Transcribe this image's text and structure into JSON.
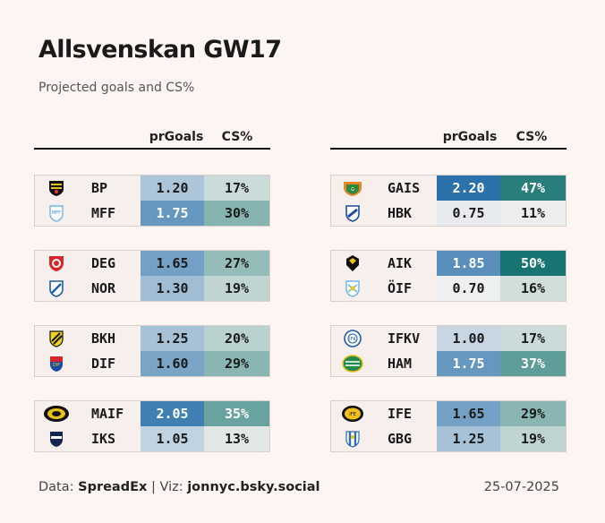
{
  "header": {
    "title": "Allsvenskan GW17",
    "subtitle": "Projected goals and CS%"
  },
  "columns": {
    "goals": "prGoals",
    "cs": "CS%"
  },
  "footer": {
    "data_prefix": "Data: ",
    "data_source": "SpreadEx",
    "separator": " | Viz: ",
    "viz_credit": "jonnyc.bsky.social",
    "date": "25-07-2025"
  },
  "chart_data": {
    "type": "table",
    "title": "Allsvenskan GW17",
    "subtitle": "Projected goals and CS%",
    "columns": [
      "prGoals",
      "CS%"
    ],
    "matches": [
      {
        "teams": [
          {
            "team": "BP",
            "goals": "1.20",
            "cs": "17%",
            "goals_value": 1.2,
            "cs_value": 17,
            "crest": "bp-crest-icon"
          },
          {
            "team": "MFF",
            "goals": "1.75",
            "cs": "30%",
            "goals_value": 1.75,
            "cs_value": 30,
            "crest": "mff-crest-icon"
          }
        ]
      },
      {
        "teams": [
          {
            "team": "DEG",
            "goals": "1.65",
            "cs": "27%",
            "goals_value": 1.65,
            "cs_value": 27,
            "crest": "deg-crest-icon"
          },
          {
            "team": "NOR",
            "goals": "1.30",
            "cs": "19%",
            "goals_value": 1.3,
            "cs_value": 19,
            "crest": "nor-crest-icon"
          }
        ]
      },
      {
        "teams": [
          {
            "team": "BKH",
            "goals": "1.25",
            "cs": "20%",
            "goals_value": 1.25,
            "cs_value": 20,
            "crest": "bkh-crest-icon"
          },
          {
            "team": "DIF",
            "goals": "1.60",
            "cs": "29%",
            "goals_value": 1.6,
            "cs_value": 29,
            "crest": "dif-crest-icon"
          }
        ]
      },
      {
        "teams": [
          {
            "team": "MAIF",
            "goals": "2.05",
            "cs": "35%",
            "goals_value": 2.05,
            "cs_value": 35,
            "crest": "maif-crest-icon"
          },
          {
            "team": "IKS",
            "goals": "1.05",
            "cs": "13%",
            "goals_value": 1.05,
            "cs_value": 13,
            "crest": "iks-crest-icon"
          }
        ]
      },
      {
        "teams": [
          {
            "team": "GAIS",
            "goals": "2.20",
            "cs": "47%",
            "goals_value": 2.2,
            "cs_value": 47,
            "crest": "gais-crest-icon"
          },
          {
            "team": "HBK",
            "goals": "0.75",
            "cs": "11%",
            "goals_value": 0.75,
            "cs_value": 11,
            "crest": "hbk-crest-icon"
          }
        ]
      },
      {
        "teams": [
          {
            "team": "AIK",
            "goals": "1.85",
            "cs": "50%",
            "goals_value": 1.85,
            "cs_value": 50,
            "crest": "aik-crest-icon"
          },
          {
            "team": "ÖIF",
            "goals": "0.70",
            "cs": "16%",
            "goals_value": 0.7,
            "cs_value": 16,
            "crest": "oif-crest-icon"
          }
        ]
      },
      {
        "teams": [
          {
            "team": "IFKV",
            "goals": "1.00",
            "cs": "17%",
            "goals_value": 1.0,
            "cs_value": 17,
            "crest": "ifkv-crest-icon"
          },
          {
            "team": "HAM",
            "goals": "1.75",
            "cs": "37%",
            "goals_value": 1.75,
            "cs_value": 37,
            "crest": "ham-crest-icon"
          }
        ]
      },
      {
        "teams": [
          {
            "team": "IFE",
            "goals": "1.65",
            "cs": "29%",
            "goals_value": 1.65,
            "cs_value": 29,
            "crest": "ife-crest-icon"
          },
          {
            "team": "GBG",
            "goals": "1.25",
            "cs": "19%",
            "goals_value": 1.25,
            "cs_value": 19,
            "crest": "gbg-crest-icon"
          }
        ]
      }
    ],
    "color_scale": {
      "goals_low": "#fbf7f5",
      "goals_high": "#1f6aa5",
      "cs_low": "#fbf7f5",
      "cs_high": "#0d6e6a"
    }
  }
}
